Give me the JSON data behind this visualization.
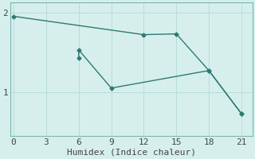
{
  "line1_x": [
    0,
    12,
    15,
    18,
    21
  ],
  "line1_y": [
    1.95,
    1.72,
    1.73,
    1.27,
    0.73
  ],
  "line2_x": [
    6,
    6,
    9,
    18,
    21
  ],
  "line2_y": [
    1.43,
    1.53,
    1.05,
    1.27,
    0.73
  ],
  "line_color": "#2d7a72",
  "bg_color": "#d6efed",
  "grid_color": "#b8ddd9",
  "xlabel": "Humidex (Indice chaleur)",
  "xticks": [
    0,
    3,
    6,
    9,
    12,
    15,
    18,
    21
  ],
  "yticks": [
    1,
    2
  ],
  "xlim": [
    -0.3,
    22.0
  ],
  "ylim": [
    0.45,
    2.12
  ],
  "xlabel_fontsize": 8,
  "tick_fontsize": 8,
  "marker": "D",
  "marker_size": 2.5,
  "line_width": 1.0
}
